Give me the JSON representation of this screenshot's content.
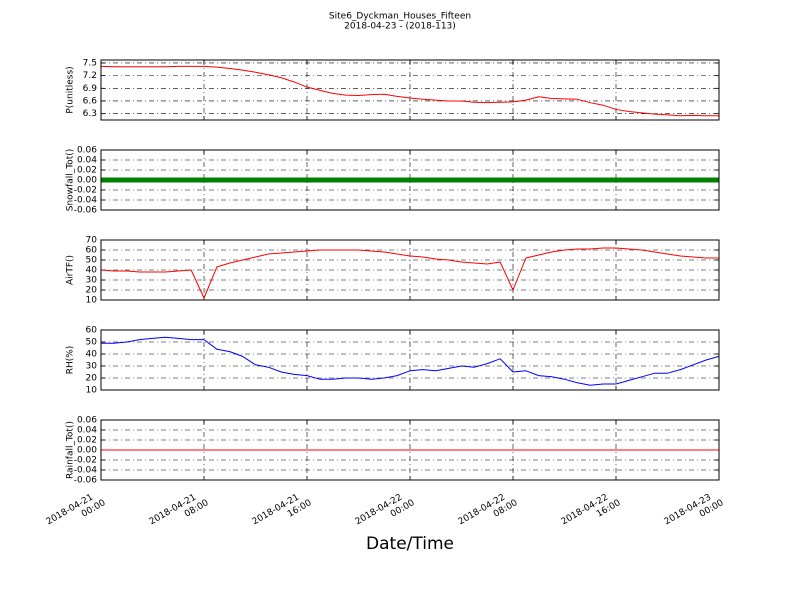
{
  "figure": {
    "title": "Site6_Dyckman_Houses_Fifteen",
    "subtitle": "2018-04-23 - (2018-113)",
    "xlabel": "Date/Time"
  },
  "chart_data": [
    {
      "type": "line",
      "ylabel": "P(unitless)",
      "ylim": [
        6.15,
        7.57
      ],
      "yticks": [
        6.3,
        6.6,
        6.9,
        7.2,
        7.5
      ],
      "xlim": [
        "2018-04-21 00:00",
        "2018-04-23 00:00"
      ],
      "xticks": [
        "2018-04-21 00:00",
        "2018-04-21 08:00",
        "2018-04-21 16:00",
        "2018-04-22 00:00",
        "2018-04-22 08:00",
        "2018-04-22 16:00",
        "2018-04-23 00:00"
      ],
      "grid": true,
      "x": [
        "2018-04-21 00:00",
        "2018-04-21 01:00",
        "2018-04-21 02:00",
        "2018-04-21 03:00",
        "2018-04-21 04:00",
        "2018-04-21 05:00",
        "2018-04-21 06:00",
        "2018-04-21 07:00",
        "2018-04-21 08:00",
        "2018-04-21 09:00",
        "2018-04-21 10:00",
        "2018-04-21 11:00",
        "2018-04-21 12:00",
        "2018-04-21 13:00",
        "2018-04-21 14:00",
        "2018-04-21 15:00",
        "2018-04-21 16:00",
        "2018-04-21 17:00",
        "2018-04-21 18:00",
        "2018-04-21 19:00",
        "2018-04-21 20:00",
        "2018-04-21 21:00",
        "2018-04-21 22:00",
        "2018-04-21 23:00",
        "2018-04-22 00:00",
        "2018-04-22 01:00",
        "2018-04-22 02:00",
        "2018-04-22 03:00",
        "2018-04-22 04:00",
        "2018-04-22 05:00",
        "2018-04-22 06:00",
        "2018-04-22 07:00",
        "2018-04-22 08:00",
        "2018-04-22 09:00",
        "2018-04-22 10:00",
        "2018-04-22 11:00",
        "2018-04-22 12:00",
        "2018-04-22 13:00",
        "2018-04-22 14:00",
        "2018-04-22 15:00",
        "2018-04-22 16:00",
        "2018-04-22 17:00",
        "2018-04-22 18:00",
        "2018-04-22 19:00",
        "2018-04-22 20:00",
        "2018-04-22 21:00",
        "2018-04-22 22:00",
        "2018-04-22 23:00",
        "2018-04-23 00:00"
      ],
      "series": [
        {
          "color": "#ff0000",
          "width": 1,
          "values": [
            7.42,
            7.41,
            7.41,
            7.41,
            7.41,
            7.41,
            7.42,
            7.42,
            7.42,
            7.4,
            7.37,
            7.33,
            7.28,
            7.22,
            7.15,
            7.05,
            6.93,
            6.85,
            6.78,
            6.74,
            6.73,
            6.75,
            6.76,
            6.71,
            6.67,
            6.64,
            6.62,
            6.6,
            6.6,
            6.57,
            6.56,
            6.57,
            6.58,
            6.62,
            6.7,
            6.66,
            6.65,
            6.64,
            6.56,
            6.5,
            6.4,
            6.35,
            6.32,
            6.29,
            6.27,
            6.25,
            6.26,
            6.25,
            6.25
          ]
        }
      ]
    },
    {
      "type": "line",
      "ylabel": "Snowfall_Tot()",
      "ylim": [
        -0.06,
        0.06
      ],
      "yticks": [
        -0.06,
        -0.04,
        -0.02,
        {
          "value": 0,
          "label": "0.00"
        },
        0.02,
        0.04,
        0.06
      ],
      "xlim": [
        "2018-04-21 00:00",
        "2018-04-23 00:00"
      ],
      "xticks": [
        "2018-04-21 00:00",
        "2018-04-21 08:00",
        "2018-04-21 16:00",
        "2018-04-22 00:00",
        "2018-04-22 08:00",
        "2018-04-22 16:00",
        "2018-04-23 00:00"
      ],
      "grid": true,
      "x": [
        "2018-04-21 00:00",
        "2018-04-21 02:00",
        "2018-04-21 04:00",
        "2018-04-21 06:00",
        "2018-04-21 08:00",
        "2018-04-21 10:00",
        "2018-04-21 12:00",
        "2018-04-21 14:00",
        "2018-04-21 16:00",
        "2018-04-21 18:00",
        "2018-04-21 20:00",
        "2018-04-21 22:00",
        "2018-04-22 00:00",
        "2018-04-22 02:00",
        "2018-04-22 04:00",
        "2018-04-22 06:00",
        "2018-04-22 08:00",
        "2018-04-22 10:00",
        "2018-04-22 12:00",
        "2018-04-22 14:00",
        "2018-04-22 16:00",
        "2018-04-22 18:00",
        "2018-04-22 20:00",
        "2018-04-22 22:00",
        "2018-04-23 00:00"
      ],
      "series": [
        {
          "color": "#008000",
          "width": 5,
          "values": [
            0,
            0,
            0,
            0,
            0,
            0,
            0,
            0,
            0,
            0,
            0,
            0,
            0,
            0,
            0,
            0,
            0,
            0,
            0,
            0,
            0,
            0,
            0,
            0,
            0
          ]
        }
      ]
    },
    {
      "type": "line",
      "ylabel": "AirTF()",
      "ylim": [
        10,
        70
      ],
      "yticks": [
        10,
        20,
        30,
        40,
        50,
        60,
        70
      ],
      "xlim": [
        "2018-04-21 00:00",
        "2018-04-23 00:00"
      ],
      "xticks": [
        "2018-04-21 00:00",
        "2018-04-21 08:00",
        "2018-04-21 16:00",
        "2018-04-22 00:00",
        "2018-04-22 08:00",
        "2018-04-22 16:00",
        "2018-04-23 00:00"
      ],
      "grid": true,
      "x": [
        "2018-04-21 00:00",
        "2018-04-21 01:00",
        "2018-04-21 02:00",
        "2018-04-21 03:00",
        "2018-04-21 04:00",
        "2018-04-21 05:00",
        "2018-04-21 06:00",
        "2018-04-21 07:00",
        "2018-04-21 08:00",
        "2018-04-21 09:00",
        "2018-04-21 10:00",
        "2018-04-21 11:00",
        "2018-04-21 12:00",
        "2018-04-21 13:00",
        "2018-04-21 14:00",
        "2018-04-21 15:00",
        "2018-04-21 16:00",
        "2018-04-21 17:00",
        "2018-04-21 18:00",
        "2018-04-21 19:00",
        "2018-04-21 20:00",
        "2018-04-21 21:00",
        "2018-04-21 22:00",
        "2018-04-21 23:00",
        "2018-04-22 00:00",
        "2018-04-22 01:00",
        "2018-04-22 02:00",
        "2018-04-22 03:00",
        "2018-04-22 04:00",
        "2018-04-22 05:00",
        "2018-04-22 06:00",
        "2018-04-22 07:00",
        "2018-04-22 08:00",
        "2018-04-22 09:00",
        "2018-04-22 10:00",
        "2018-04-22 11:00",
        "2018-04-22 12:00",
        "2018-04-22 13:00",
        "2018-04-22 14:00",
        "2018-04-22 15:00",
        "2018-04-22 16:00",
        "2018-04-22 17:00",
        "2018-04-22 18:00",
        "2018-04-22 19:00",
        "2018-04-22 20:00",
        "2018-04-22 21:00",
        "2018-04-22 22:00",
        "2018-04-22 23:00",
        "2018-04-23 00:00"
      ],
      "series": [
        {
          "color": "#ff0000",
          "width": 1,
          "values": [
            40,
            39,
            39,
            38,
            38,
            38,
            39,
            40,
            12,
            43,
            47,
            50,
            53,
            56,
            57,
            58,
            59,
            60,
            60,
            60,
            60,
            59,
            58,
            56,
            54,
            53,
            51,
            50,
            48,
            47,
            46,
            48,
            20,
            52,
            55,
            58,
            60,
            61,
            61,
            62,
            62,
            61,
            60,
            58,
            56,
            54,
            53,
            52,
            52
          ]
        }
      ]
    },
    {
      "type": "line",
      "ylabel": "RH(%)",
      "ylim": [
        10,
        60
      ],
      "yticks": [
        10,
        20,
        30,
        40,
        50,
        60
      ],
      "xlim": [
        "2018-04-21 00:00",
        "2018-04-23 00:00"
      ],
      "xticks": [
        "2018-04-21 00:00",
        "2018-04-21 08:00",
        "2018-04-21 16:00",
        "2018-04-22 00:00",
        "2018-04-22 08:00",
        "2018-04-22 16:00",
        "2018-04-23 00:00"
      ],
      "grid": true,
      "x": [
        "2018-04-21 00:00",
        "2018-04-21 01:00",
        "2018-04-21 02:00",
        "2018-04-21 03:00",
        "2018-04-21 04:00",
        "2018-04-21 05:00",
        "2018-04-21 06:00",
        "2018-04-21 07:00",
        "2018-04-21 08:00",
        "2018-04-21 09:00",
        "2018-04-21 10:00",
        "2018-04-21 11:00",
        "2018-04-21 12:00",
        "2018-04-21 13:00",
        "2018-04-21 14:00",
        "2018-04-21 15:00",
        "2018-04-21 16:00",
        "2018-04-21 17:00",
        "2018-04-21 18:00",
        "2018-04-21 19:00",
        "2018-04-21 20:00",
        "2018-04-21 21:00",
        "2018-04-21 22:00",
        "2018-04-21 23:00",
        "2018-04-22 00:00",
        "2018-04-22 01:00",
        "2018-04-22 02:00",
        "2018-04-22 03:00",
        "2018-04-22 04:00",
        "2018-04-22 05:00",
        "2018-04-22 06:00",
        "2018-04-22 07:00",
        "2018-04-22 08:00",
        "2018-04-22 09:00",
        "2018-04-22 10:00",
        "2018-04-22 11:00",
        "2018-04-22 12:00",
        "2018-04-22 13:00",
        "2018-04-22 14:00",
        "2018-04-22 15:00",
        "2018-04-22 16:00",
        "2018-04-22 17:00",
        "2018-04-22 18:00",
        "2018-04-22 19:00",
        "2018-04-22 20:00",
        "2018-04-22 21:00",
        "2018-04-22 22:00",
        "2018-04-22 23:00",
        "2018-04-23 00:00"
      ],
      "series": [
        {
          "color": "#0000ff",
          "width": 1,
          "values": [
            49,
            49,
            50,
            52,
            53,
            54,
            53,
            52,
            52,
            44,
            42,
            38,
            31,
            29,
            25,
            23,
            22,
            19,
            19,
            20,
            20,
            19,
            20,
            22,
            26,
            27,
            26,
            28,
            30,
            29,
            32,
            36,
            25,
            26,
            22,
            21,
            19,
            16,
            14,
            15,
            15,
            18,
            21,
            24,
            24,
            27,
            31,
            35,
            38
          ]
        }
      ]
    },
    {
      "type": "line",
      "ylabel": "Rainfall_Tot()",
      "ylim": [
        -0.06,
        0.06
      ],
      "yticks": [
        -0.06,
        -0.04,
        -0.02,
        {
          "value": 0,
          "label": "0.00"
        },
        0.02,
        0.04,
        0.06
      ],
      "xlim": [
        "2018-04-21 00:00",
        "2018-04-23 00:00"
      ],
      "xticks": [
        "2018-04-21 00:00",
        "2018-04-21 08:00",
        "2018-04-21 16:00",
        "2018-04-22 00:00",
        "2018-04-22 08:00",
        "2018-04-22 16:00",
        "2018-04-23 00:00"
      ],
      "show_xticklabels": true,
      "grid": true,
      "x": [
        "2018-04-21 00:00",
        "2018-04-21 02:00",
        "2018-04-21 04:00",
        "2018-04-21 06:00",
        "2018-04-21 08:00",
        "2018-04-21 10:00",
        "2018-04-21 12:00",
        "2018-04-21 14:00",
        "2018-04-21 16:00",
        "2018-04-21 18:00",
        "2018-04-21 20:00",
        "2018-04-21 22:00",
        "2018-04-22 00:00",
        "2018-04-22 02:00",
        "2018-04-22 04:00",
        "2018-04-22 06:00",
        "2018-04-22 08:00",
        "2018-04-22 10:00",
        "2018-04-22 12:00",
        "2018-04-22 14:00",
        "2018-04-22 16:00",
        "2018-04-22 18:00",
        "2018-04-22 20:00",
        "2018-04-22 22:00",
        "2018-04-23 00:00"
      ],
      "series": [
        {
          "color": "#ff0000",
          "width": 1,
          "values": [
            0,
            0,
            0,
            0,
            0,
            0,
            0,
            0,
            0,
            0,
            0,
            0,
            0,
            0,
            0,
            0,
            0,
            0,
            0,
            0,
            0,
            0,
            0,
            0,
            0
          ]
        }
      ]
    }
  ]
}
